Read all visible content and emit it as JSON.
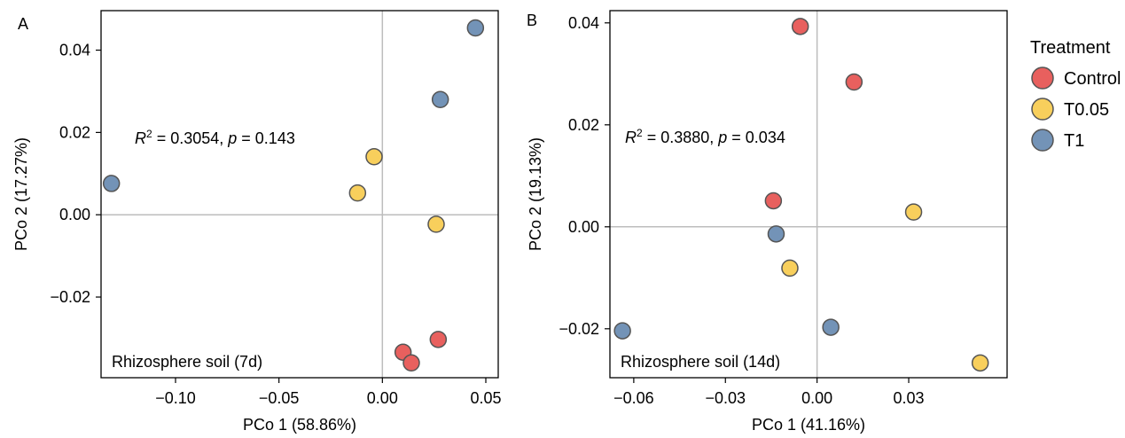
{
  "colors": {
    "Control": "#e8605e",
    "T0.05": "#f8cf5c",
    "T1": "#7393b7",
    "refline": "#bdbdbd",
    "marker_stroke": "#555555"
  },
  "legend": {
    "title": "Treatment",
    "items": [
      {
        "label": "Control",
        "key": "Control"
      },
      {
        "label": "T0.05",
        "key": "T0.05"
      },
      {
        "label": "T1",
        "key": "T1"
      }
    ]
  },
  "chart_data": [
    {
      "type": "scatter",
      "panel_label": "A",
      "xlabel": "PCo 1 (58.86%)",
      "ylabel": "PCo 2 (17.27%)",
      "xlim": [
        -0.136,
        0.056
      ],
      "ylim": [
        -0.0396,
        0.0496
      ],
      "xticks": [
        -0.1,
        -0.05,
        0.0,
        0.05
      ],
      "xtick_labels": [
        "−0.10",
        "−0.05",
        "0.00",
        "0.05"
      ],
      "yticks": [
        -0.02,
        0.0,
        0.02,
        0.04
      ],
      "ytick_labels": [
        "−0.02",
        "0.00",
        "0.02",
        "0.04"
      ],
      "stat": {
        "r2_symbol": "R",
        "r2_sup": "2",
        "r2_value": " = 0.3054, ",
        "p_symbol": "p",
        "p_value": " = 0.143"
      },
      "annotation": "Rhizosphere soil (7d)",
      "series": [
        {
          "name": "Control",
          "x": [
            0.01,
            0.014,
            0.027
          ],
          "y": [
            -0.0334,
            -0.036,
            -0.0303
          ]
        },
        {
          "name": "T0.05",
          "x": [
            -0.012,
            -0.004,
            0.026
          ],
          "y": [
            0.0053,
            0.0141,
            -0.0023
          ]
        },
        {
          "name": "T1",
          "x": [
            -0.131,
            0.028,
            0.045
          ],
          "y": [
            0.0076,
            0.028,
            0.0454
          ]
        }
      ]
    },
    {
      "type": "scatter",
      "panel_label": "B",
      "xlabel": "PCo 1 (41.16%)",
      "ylabel": "PCo 2 (19.13%)",
      "xlim": [
        -0.0678,
        0.0622
      ],
      "ylim": [
        -0.0296,
        0.0424
      ],
      "xticks": [
        -0.06,
        -0.03,
        0.0,
        0.03
      ],
      "xtick_labels": [
        "−0.06",
        "−0.03",
        "0.00",
        "0.03"
      ],
      "yticks": [
        -0.02,
        0.0,
        0.02,
        0.04
      ],
      "ytick_labels": [
        "−0.02",
        "0.00",
        "0.02",
        "0.04"
      ],
      "stat": {
        "r2_symbol": "R",
        "r2_sup": "2",
        "r2_value": " = 0.3880, ",
        "p_symbol": "p",
        "p_value": " = 0.034"
      },
      "annotation": "Rhizosphere soil (14d)",
      "series": [
        {
          "name": "Control",
          "x": [
            -0.0055,
            0.0121,
            -0.0143
          ],
          "y": [
            0.0393,
            0.0284,
            0.0051
          ]
        },
        {
          "name": "T0.05",
          "x": [
            0.0316,
            -0.0089,
            0.0534
          ],
          "y": [
            0.0029,
            -0.0081,
            -0.0267
          ]
        },
        {
          "name": "T1",
          "x": [
            -0.0134,
            -0.0637,
            0.0045
          ],
          "y": [
            -0.0014,
            -0.0204,
            -0.0197
          ]
        }
      ]
    }
  ]
}
